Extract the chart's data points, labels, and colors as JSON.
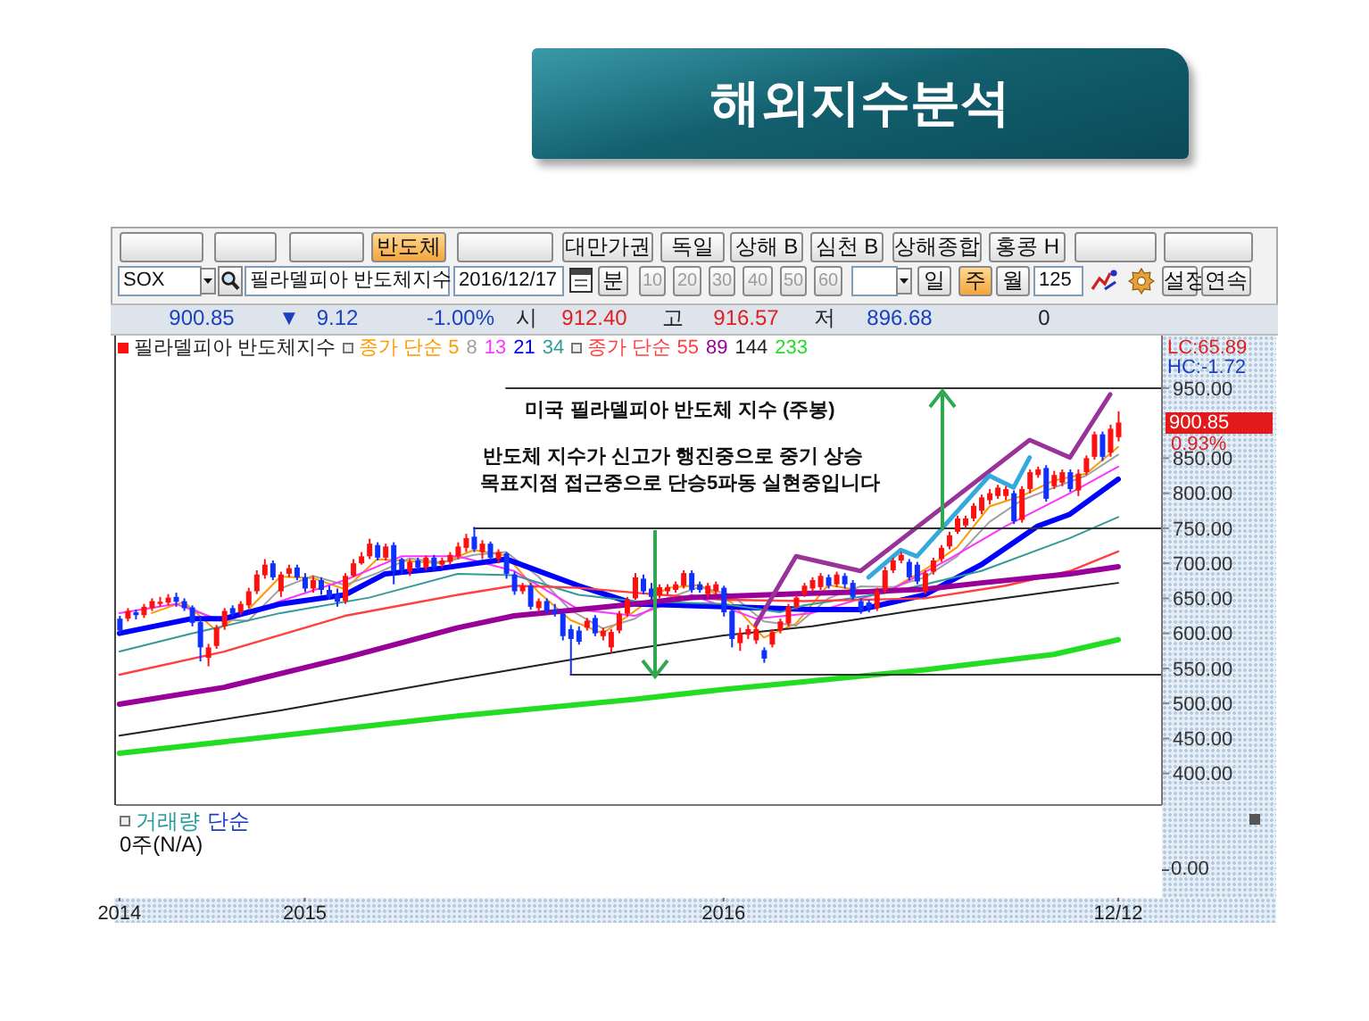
{
  "chart_data": {
    "type": "candlestick",
    "title": "해외지수분석",
    "legend": "top left",
    "marker": "none",
    "x": [
      "2014-07-28",
      "2014-08-04",
      "2014-08-11",
      "2014-08-18",
      "2014-08-25",
      "2014-09-01",
      "2014-09-08",
      "2014-09-15",
      "2014-09-22",
      "2014-09-29",
      "2014-10-06",
      "2014-10-13",
      "2014-10-20",
      "2014-10-27",
      "2014-11-03",
      "2014-11-10",
      "2014-11-17",
      "2014-11-24",
      "2014-12-01",
      "2014-12-08",
      "2014-12-15",
      "2014-12-22",
      "2014-12-29",
      "2015-01-05",
      "2015-01-12",
      "2015-01-19",
      "2015-01-26",
      "2015-02-02",
      "2015-02-09",
      "2015-02-16",
      "2015-02-23",
      "2015-03-02",
      "2015-03-09",
      "2015-03-16",
      "2015-03-23",
      "2015-03-30",
      "2015-04-06",
      "2015-04-13",
      "2015-04-20",
      "2015-04-27",
      "2015-05-04",
      "2015-05-11",
      "2015-05-18",
      "2015-05-25",
      "2015-06-01",
      "2015-06-08",
      "2015-06-15",
      "2015-06-22",
      "2015-06-29",
      "2015-07-06",
      "2015-07-13",
      "2015-07-20",
      "2015-07-27",
      "2015-08-03",
      "2015-08-10",
      "2015-08-17",
      "2015-08-24",
      "2015-08-31",
      "2015-09-07",
      "2015-09-14",
      "2015-09-21",
      "2015-09-28",
      "2015-10-05",
      "2015-10-12",
      "2015-10-19",
      "2015-10-26",
      "2015-11-02",
      "2015-11-09",
      "2015-11-16",
      "2015-11-23",
      "2015-11-30",
      "2015-12-07",
      "2015-12-14",
      "2015-12-21",
      "2015-12-28",
      "2016-01-04",
      "2016-01-11",
      "2016-01-18",
      "2016-01-25",
      "2016-02-01",
      "2016-02-08",
      "2016-02-15",
      "2016-02-22",
      "2016-02-29",
      "2016-03-07",
      "2016-03-14",
      "2016-03-21",
      "2016-03-28",
      "2016-04-04",
      "2016-04-11",
      "2016-04-18",
      "2016-04-25",
      "2016-05-02",
      "2016-05-09",
      "2016-05-16",
      "2016-05-23",
      "2016-05-30",
      "2016-06-06",
      "2016-06-13",
      "2016-06-20",
      "2016-06-27",
      "2016-07-04",
      "2016-07-11",
      "2016-07-18",
      "2016-07-25",
      "2016-08-01",
      "2016-08-08",
      "2016-08-15",
      "2016-08-22",
      "2016-08-29",
      "2016-09-05",
      "2016-09-12",
      "2016-09-19",
      "2016-09-26",
      "2016-10-03",
      "2016-10-10",
      "2016-10-17",
      "2016-10-24",
      "2016-10-31",
      "2016-11-07",
      "2016-11-14",
      "2016-11-21",
      "2016-11-28",
      "2016-12-05",
      "2016-12-12"
    ],
    "xlim": [
      "2014-07-25",
      "2017-01-19"
    ],
    "xticks": [
      {
        "value": "2014-07-28",
        "label": "2014"
      },
      {
        "value": "2015-01-05",
        "label": "2015"
      },
      {
        "value": "2016-01-04",
        "label": "2016"
      },
      {
        "value": "2016-12-12",
        "label": "12/12"
      }
    ],
    "ylim": [
      355,
      1025
    ],
    "yticks": [
      {
        "value": 400,
        "label": "400.00"
      },
      {
        "value": 450,
        "label": "450.00"
      },
      {
        "value": 500,
        "label": "500.00"
      },
      {
        "value": 550,
        "label": "550.00"
      },
      {
        "value": 600,
        "label": "600.00"
      },
      {
        "value": 650,
        "label": "650.00"
      },
      {
        "value": 700,
        "label": "700.00"
      },
      {
        "value": 750,
        "label": "750.00"
      },
      {
        "value": 800,
        "label": "800.00"
      },
      {
        "value": 850,
        "label": "850.00"
      },
      {
        "value": 950,
        "label": "950.00"
      }
    ],
    "series": [
      {
        "name": "필라델피아 반도체지수",
        "ohlc": [
          [
            621,
            625,
            600,
            604
          ],
          [
            621,
            636,
            617,
            632
          ],
          [
            630,
            634,
            620,
            626
          ],
          [
            626,
            642,
            622,
            638
          ],
          [
            636,
            650,
            632,
            646
          ],
          [
            642,
            652,
            638,
            645
          ],
          [
            644,
            656,
            640,
            651
          ],
          [
            652,
            658,
            638,
            645
          ],
          [
            646,
            650,
            632,
            636
          ],
          [
            637,
            640,
            610,
            615
          ],
          [
            616,
            625,
            560,
            580
          ],
          [
            565,
            585,
            553,
            580
          ],
          [
            582,
            612,
            578,
            608
          ],
          [
            610,
            636,
            605,
            632
          ],
          [
            636,
            640,
            624,
            628
          ],
          [
            630,
            646,
            626,
            642
          ],
          [
            640,
            665,
            636,
            660
          ],
          [
            660,
            690,
            656,
            684
          ],
          [
            683,
            706,
            678,
            698
          ],
          [
            700,
            704,
            676,
            680
          ],
          [
            660,
            688,
            652,
            684
          ],
          [
            685,
            698,
            680,
            693
          ],
          [
            694,
            698,
            676,
            680
          ],
          [
            680,
            686,
            659,
            664
          ],
          [
            664,
            682,
            658,
            676
          ],
          [
            676,
            680,
            655,
            662
          ],
          [
            662,
            668,
            648,
            652
          ],
          [
            656,
            664,
            638,
            645
          ],
          [
            646,
            686,
            642,
            682
          ],
          [
            682,
            706,
            680,
            700
          ],
          [
            700,
            716,
            698,
            710
          ],
          [
            710,
            735,
            706,
            728
          ],
          [
            726,
            730,
            704,
            708
          ],
          [
            708,
            728,
            704,
            724
          ],
          [
            726,
            730,
            670,
            690
          ],
          [
            706,
            708,
            684,
            690
          ],
          [
            688,
            706,
            682,
            702
          ],
          [
            704,
            708,
            690,
            694
          ],
          [
            694,
            711,
            690,
            708
          ],
          [
            708,
            712,
            690,
            694
          ],
          [
            698,
            708,
            694,
            704
          ],
          [
            702,
            716,
            698,
            712
          ],
          [
            710,
            730,
            706,
            724
          ],
          [
            722,
            742,
            716,
            736
          ],
          [
            738,
            752,
            716,
            720
          ],
          [
            716,
            733,
            706,
            728
          ],
          [
            728,
            731,
            704,
            708
          ],
          [
            706,
            720,
            700,
            716
          ],
          [
            714,
            716,
            678,
            685
          ],
          [
            684,
            688,
            655,
            660
          ],
          [
            660,
            672,
            656,
            668
          ],
          [
            668,
            672,
            634,
            638
          ],
          [
            636,
            650,
            632,
            646
          ],
          [
            646,
            650,
            628,
            632
          ],
          [
            634,
            642,
            624,
            628
          ],
          [
            628,
            632,
            590,
            596
          ],
          [
            606,
            612,
            541,
            592
          ],
          [
            604,
            610,
            584,
            588
          ],
          [
            608,
            622,
            604,
            618
          ],
          [
            622,
            626,
            596,
            600
          ],
          [
            596,
            608,
            590,
            604
          ],
          [
            580,
            606,
            572,
            602
          ],
          [
            604,
            632,
            600,
            628
          ],
          [
            628,
            652,
            624,
            648
          ],
          [
            650,
            686,
            648,
            680
          ],
          [
            678,
            684,
            656,
            660
          ],
          [
            664,
            672,
            646,
            652
          ],
          [
            654,
            670,
            650,
            666
          ],
          [
            660,
            670,
            655,
            666
          ],
          [
            662,
            674,
            658,
            670
          ],
          [
            668,
            690,
            664,
            686
          ],
          [
            686,
            690,
            658,
            662
          ],
          [
            670,
            674,
            658,
            662
          ],
          [
            656,
            672,
            652,
            668
          ],
          [
            660,
            674,
            656,
            670
          ],
          [
            665,
            668,
            624,
            630
          ],
          [
            632,
            636,
            580,
            592
          ],
          [
            586,
            608,
            575,
            600
          ],
          [
            598,
            612,
            592,
            606
          ],
          [
            590,
            611,
            585,
            606
          ],
          [
            576,
            580,
            558,
            564
          ],
          [
            584,
            606,
            580,
            602
          ],
          [
            604,
            621,
            600,
            617
          ],
          [
            614,
            642,
            610,
            638
          ],
          [
            638,
            655,
            634,
            651
          ],
          [
            656,
            672,
            652,
            668
          ],
          [
            664,
            680,
            660,
            676
          ],
          [
            666,
            686,
            662,
            682
          ],
          [
            680,
            684,
            664,
            668
          ],
          [
            670,
            688,
            666,
            684
          ],
          [
            682,
            686,
            664,
            670
          ],
          [
            672,
            676,
            648,
            652
          ],
          [
            646,
            650,
            628,
            632
          ],
          [
            644,
            648,
            630,
            636
          ],
          [
            636,
            665,
            632,
            660
          ],
          [
            662,
            695,
            658,
            690
          ],
          [
            690,
            708,
            686,
            704
          ],
          [
            704,
            716,
            700,
            712
          ],
          [
            702,
            706,
            676,
            680
          ],
          [
            698,
            702,
            670,
            674
          ],
          [
            660,
            690,
            656,
            686
          ],
          [
            688,
            708,
            684,
            704
          ],
          [
            706,
            726,
            702,
            722
          ],
          [
            724,
            745,
            720,
            740
          ],
          [
            745,
            768,
            742,
            764
          ],
          [
            754,
            768,
            750,
            764
          ],
          [
            764,
            786,
            760,
            782
          ],
          [
            775,
            798,
            770,
            794
          ],
          [
            790,
            806,
            784,
            800
          ],
          [
            796,
            812,
            792,
            808
          ],
          [
            796,
            810,
            790,
            806
          ],
          [
            800,
            804,
            756,
            760
          ],
          [
            762,
            810,
            758,
            806
          ],
          [
            806,
            834,
            800,
            830
          ],
          [
            826,
            838,
            822,
            834
          ],
          [
            836,
            840,
            788,
            792
          ],
          [
            810,
            832,
            806,
            826
          ],
          [
            815,
            834,
            810,
            830
          ],
          [
            830,
            834,
            802,
            806
          ],
          [
            804,
            834,
            796,
            828
          ],
          [
            830,
            854,
            826,
            850
          ],
          [
            852,
            888,
            848,
            884
          ],
          [
            884,
            888,
            846,
            852
          ],
          [
            858,
            898,
            852,
            892
          ],
          [
            880,
            917,
            874,
            900.85
          ]
        ]
      },
      {
        "type": "line",
        "name": "종가 단순 5",
        "color": "#ff9900",
        "x": [
          "2014-08-25",
          "2014-09-22",
          "2014-10-20",
          "2014-11-17",
          "2014-12-15",
          "2015-01-12",
          "2015-02-09",
          "2015-03-09",
          "2015-04-06",
          "2015-05-04",
          "2015-06-01",
          "2015-06-29",
          "2015-07-27",
          "2015-08-24",
          "2015-09-21",
          "2015-10-19",
          "2015-11-16",
          "2015-12-14",
          "2016-01-11",
          "2016-02-08",
          "2016-03-07",
          "2016-04-04",
          "2016-05-02",
          "2016-05-30",
          "2016-06-27",
          "2016-07-25",
          "2016-08-22",
          "2016-09-19",
          "2016-10-17",
          "2016-11-14",
          "2016-12-12"
        ],
        "values": [
          629,
          645,
          604,
          634,
          681,
          679,
          663,
          706,
          703,
          700,
          719,
          711,
          659,
          619,
          600,
          632,
          665,
          669,
          644,
          594,
          614,
          669,
          661,
          664,
          691,
          723,
          781,
          796,
          818,
          828,
          866
        ]
      },
      {
        "type": "line",
        "name": "8",
        "color": "#a0a0a0",
        "x": [
          "2014-09-22",
          "2014-10-20",
          "2014-11-17",
          "2014-12-15",
          "2015-01-12",
          "2015-02-09",
          "2015-03-09",
          "2015-04-06",
          "2015-05-04",
          "2015-06-01",
          "2015-06-29",
          "2015-07-27",
          "2015-08-24",
          "2015-09-21",
          "2015-10-19",
          "2015-11-16",
          "2015-12-14",
          "2016-01-11",
          "2016-02-08",
          "2016-03-07",
          "2016-04-04",
          "2016-05-02",
          "2016-05-30",
          "2016-06-27",
          "2016-07-25",
          "2016-08-22",
          "2016-09-19",
          "2016-10-17",
          "2016-11-14",
          "2016-12-12"
        ],
        "values": [
          640,
          620,
          618,
          664,
          682,
          669,
          686,
          707,
          701,
          712,
          716,
          681,
          633,
          607,
          621,
          650,
          666,
          655,
          617,
          611,
          650,
          667,
          666,
          680,
          710,
          759,
          790,
          808,
          825,
          855
        ]
      },
      {
        "type": "line",
        "name": "13",
        "color": "#ff33ff",
        "x": [
          "2014-07-28",
          "2014-09-15",
          "2014-10-06",
          "2014-10-27",
          "2014-12-15",
          "2015-02-09",
          "2015-03-30",
          "2015-05-18",
          "2015-07-06",
          "2015-08-31",
          "2015-10-19",
          "2015-12-07",
          "2016-02-01",
          "2016-03-21",
          "2016-05-30",
          "2016-07-18",
          "2016-09-05",
          "2016-10-31",
          "2016-12-12"
        ],
        "values": [
          629,
          642,
          629,
          617,
          646,
          676,
          710,
          710,
          689,
          634,
          625,
          655,
          621,
          629,
          663,
          706,
          753,
          800,
          838
        ]
      },
      {
        "type": "line",
        "name": "21",
        "color": "#0000ff",
        "x": [
          "2014-07-28",
          "2014-09-29",
          "2014-10-27",
          "2014-12-15",
          "2015-02-09",
          "2015-03-16",
          "2015-05-04",
          "2015-06-29",
          "2015-08-31",
          "2015-10-19",
          "2016-01-04",
          "2016-03-21",
          "2016-05-02",
          "2016-06-27",
          "2016-08-15",
          "2016-10-03",
          "2016-10-31",
          "2016-12-12"
        ],
        "values": [
          600,
          621,
          621,
          642,
          655,
          685,
          693,
          706,
          668,
          642,
          638,
          634,
          634,
          655,
          698,
          753,
          770,
          820
        ]
      },
      {
        "type": "line",
        "name": "34",
        "color": "#339999",
        "x": [
          "2014-07-28",
          "2014-09-29",
          "2014-12-15",
          "2015-03-02",
          "2015-05-18",
          "2015-07-06",
          "2015-08-31",
          "2015-10-19",
          "2016-01-04",
          "2016-02-22",
          "2016-03-14",
          "2016-05-30",
          "2016-08-15",
          "2016-10-31",
          "2016-12-12"
        ],
        "values": [
          574,
          600,
          629,
          651,
          685,
          683,
          655,
          646,
          642,
          630,
          640,
          659,
          689,
          736,
          766
        ]
      },
      {
        "type": "line",
        "name": "종가 단순 55",
        "color": "#ff4040",
        "x": [
          "2014-07-28",
          "2014-10-27",
          "2015-02-09",
          "2015-05-18",
          "2015-07-06",
          "2015-08-31",
          "2015-10-19",
          "2016-01-04",
          "2016-03-14",
          "2016-06-27",
          "2016-09-05",
          "2016-10-31",
          "2016-12-12"
        ],
        "values": [
          541,
          574,
          625,
          655,
          668,
          665,
          658,
          648,
          646,
          650,
          668,
          689,
          717
        ]
      },
      {
        "type": "line",
        "name": "89",
        "color": "#990099",
        "x": [
          "2014-07-28",
          "2014-10-27",
          "2015-02-09",
          "2015-05-18",
          "2015-07-06",
          "2015-08-31",
          "2015-10-19",
          "2015-12-07",
          "2016-03-14",
          "2016-05-02",
          "2016-06-27",
          "2016-08-15",
          "2016-10-31",
          "2016-12-12"
        ],
        "values": [
          499,
          523,
          565,
          608,
          625,
          634,
          642,
          651,
          657,
          659,
          663,
          672,
          685,
          695
        ]
      },
      {
        "type": "line",
        "name": "144",
        "color": "#222222",
        "x": [
          "2014-07-28",
          "2014-12-15",
          "2015-05-18",
          "2015-10-19",
          "2016-01-04",
          "2016-03-21",
          "2016-06-27",
          "2016-10-31",
          "2016-12-12"
        ],
        "values": [
          454,
          490,
          535,
          578,
          597,
          610,
          635,
          663,
          672
        ]
      },
      {
        "type": "line",
        "name": "233",
        "color": "#22dd22",
        "x": [
          "2014-07-28",
          "2014-12-15",
          "2015-05-18",
          "2015-10-19",
          "2016-01-04",
          "2016-03-21",
          "2016-06-27",
          "2016-10-17",
          "2016-12-12"
        ],
        "values": [
          429,
          454,
          482,
          506,
          520,
          532,
          548,
          570,
          591
        ]
      },
      {
        "type": "line",
        "color": "#993399",
        "x": [
          "2016-02-01",
          "2016-03-07",
          "2016-05-02",
          "2016-09-26",
          "2016-10-31",
          "2016-12-05"
        ],
        "values": [
          612,
          710,
          689,
          876,
          851,
          941
        ]
      },
      {
        "type": "line",
        "color": "#33aadd",
        "x": [
          "2016-05-09",
          "2016-06-06",
          "2016-06-20",
          "2016-08-22",
          "2016-09-12",
          "2016-09-26"
        ],
        "values": [
          680,
          719,
          710,
          825,
          808,
          851
        ]
      },
      {
        "type": "line",
        "color": "#333333",
        "x": [
          "2015-06-29",
          "2017-01-19"
        ],
        "values": [
          950,
          950
        ]
      },
      {
        "type": "line",
        "color": "#333333",
        "x": [
          "2015-06-01",
          "2017-01-19"
        ],
        "values": [
          750,
          750
        ]
      },
      {
        "type": "line",
        "color": "#333333",
        "x": [
          "2015-08-24",
          "2017-01-19"
        ],
        "values": [
          541,
          541
        ]
      }
    ],
    "annotations": [
      "미국 필라델피아 반도체 지수 (주봉)",
      "반도체 지수가 신고가 행진중으로 중기 상승",
      "목표지점 접근중으로 단승5파동 실현중입니다",
      "반도체",
      "대만가권",
      "독일",
      "상해 B",
      "심천 B",
      "상해종합",
      "홍콩 H",
      "SOX",
      "필라델피아 반도체지수",
      "2016/12/17",
      "분",
      "10",
      "20",
      "30",
      "40",
      "50",
      "60",
      "일",
      "주",
      "월",
      "125",
      "설정",
      "연속",
      "900.85",
      "▼",
      "9.12",
      "-1.00%",
      "시",
      "912.40",
      "고",
      "916.57",
      "저",
      "896.68",
      "0",
      "LC:65.89",
      "HC:-1.72",
      "900.85",
      "0.93%",
      "거래량",
      "단순",
      "0주(N/A)",
      "0.00"
    ]
  }
}
